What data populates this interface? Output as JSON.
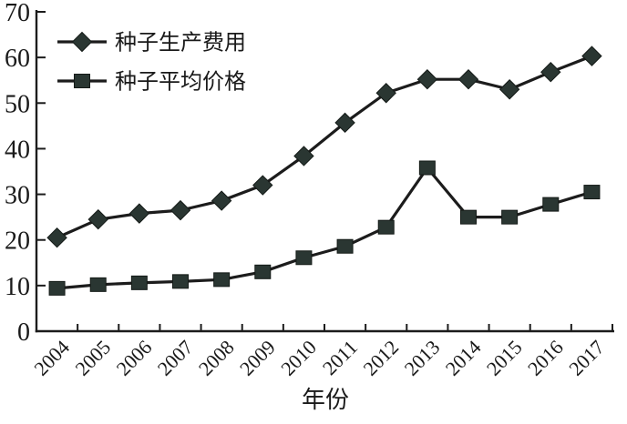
{
  "chart_data": {
    "type": "line",
    "title": "",
    "xlabel": "年份",
    "ylabel": "",
    "ylim": [
      0,
      70
    ],
    "yticks": [
      0,
      10,
      20,
      30,
      40,
      50,
      60,
      70
    ],
    "categories": [
      "2004",
      "2005",
      "2006",
      "2007",
      "2008",
      "2009",
      "2010",
      "2011",
      "2012",
      "2013",
      "2014",
      "2015",
      "2016",
      "2017"
    ],
    "series": [
      {
        "name": "种子生产费用",
        "marker": "diamond",
        "values": [
          20.5,
          24.5,
          25.8,
          26.5,
          28.6,
          32.0,
          38.4,
          45.7,
          52.2,
          55.2,
          55.2,
          53.0,
          56.8,
          60.3
        ]
      },
      {
        "name": "种子平均价格",
        "marker": "square",
        "values": [
          9.4,
          10.2,
          10.6,
          10.9,
          11.3,
          13.0,
          16.1,
          18.6,
          22.8,
          35.8,
          25.0,
          25.0,
          27.8,
          30.5
        ]
      }
    ],
    "legend_position": "top-left",
    "grid": false,
    "colors": {
      "line": "#1c1c1c",
      "marker_fill": "#2a3632",
      "marker_stroke": "#141a17",
      "text": "#1a1a1a",
      "background": "#ffffff"
    }
  }
}
